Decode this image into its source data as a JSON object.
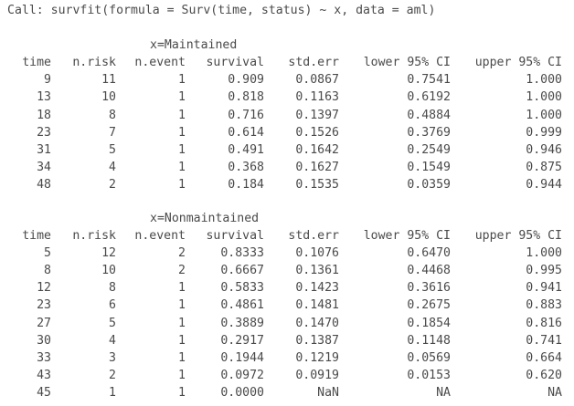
{
  "call": "Call: survfit(formula = Surv(time, status) ~ x, data = aml)",
  "columns": {
    "time": "time",
    "n_risk": "n.risk",
    "n_event": "n.event",
    "survival": "survival",
    "std_err": "std.err",
    "lower": "lower 95% CI",
    "upper": "upper 95% CI"
  },
  "strata": [
    {
      "title": "x=Maintained",
      "rows": [
        {
          "time": "9",
          "n_risk": "11",
          "n_event": "1",
          "survival": "0.909",
          "std_err": "0.0867",
          "lower": "0.7541",
          "upper": "1.000"
        },
        {
          "time": "13",
          "n_risk": "10",
          "n_event": "1",
          "survival": "0.818",
          "std_err": "0.1163",
          "lower": "0.6192",
          "upper": "1.000"
        },
        {
          "time": "18",
          "n_risk": "8",
          "n_event": "1",
          "survival": "0.716",
          "std_err": "0.1397",
          "lower": "0.4884",
          "upper": "1.000"
        },
        {
          "time": "23",
          "n_risk": "7",
          "n_event": "1",
          "survival": "0.614",
          "std_err": "0.1526",
          "lower": "0.3769",
          "upper": "0.999"
        },
        {
          "time": "31",
          "n_risk": "5",
          "n_event": "1",
          "survival": "0.491",
          "std_err": "0.1642",
          "lower": "0.2549",
          "upper": "0.946"
        },
        {
          "time": "34",
          "n_risk": "4",
          "n_event": "1",
          "survival": "0.368",
          "std_err": "0.1627",
          "lower": "0.1549",
          "upper": "0.875"
        },
        {
          "time": "48",
          "n_risk": "2",
          "n_event": "1",
          "survival": "0.184",
          "std_err": "0.1535",
          "lower": "0.0359",
          "upper": "0.944"
        }
      ]
    },
    {
      "title": "x=Nonmaintained",
      "rows": [
        {
          "time": "5",
          "n_risk": "12",
          "n_event": "2",
          "survival": "0.8333",
          "std_err": "0.1076",
          "lower": "0.6470",
          "upper": "1.000"
        },
        {
          "time": "8",
          "n_risk": "10",
          "n_event": "2",
          "survival": "0.6667",
          "std_err": "0.1361",
          "lower": "0.4468",
          "upper": "0.995"
        },
        {
          "time": "12",
          "n_risk": "8",
          "n_event": "1",
          "survival": "0.5833",
          "std_err": "0.1423",
          "lower": "0.3616",
          "upper": "0.941"
        },
        {
          "time": "23",
          "n_risk": "6",
          "n_event": "1",
          "survival": "0.4861",
          "std_err": "0.1481",
          "lower": "0.2675",
          "upper": "0.883"
        },
        {
          "time": "27",
          "n_risk": "5",
          "n_event": "1",
          "survival": "0.3889",
          "std_err": "0.1470",
          "lower": "0.1854",
          "upper": "0.816"
        },
        {
          "time": "30",
          "n_risk": "4",
          "n_event": "1",
          "survival": "0.2917",
          "std_err": "0.1387",
          "lower": "0.1148",
          "upper": "0.741"
        },
        {
          "time": "33",
          "n_risk": "3",
          "n_event": "1",
          "survival": "0.1944",
          "std_err": "0.1219",
          "lower": "0.0569",
          "upper": "0.664"
        },
        {
          "time": "43",
          "n_risk": "2",
          "n_event": "1",
          "survival": "0.0972",
          "std_err": "0.0919",
          "lower": "0.0153",
          "upper": "0.620"
        },
        {
          "time": "45",
          "n_risk": "1",
          "n_event": "1",
          "survival": "0.0000",
          "std_err": "NaN",
          "lower": "NA",
          "upper": "NA"
        }
      ]
    }
  ]
}
